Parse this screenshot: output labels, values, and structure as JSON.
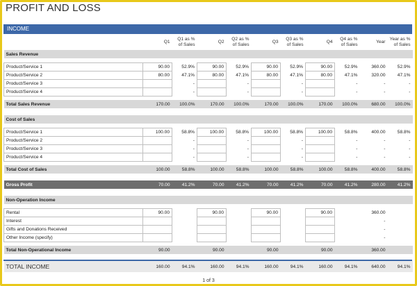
{
  "title": "PROFIT AND LOSS",
  "section": "INCOME",
  "headers": [
    "",
    "Q1",
    "Q1 as % of Sales",
    "Q2",
    "Q2 as % of Sales",
    "Q3",
    "Q3 as % of Sales",
    "Q4",
    "Q4 as % of Sales",
    "Year",
    "Year as % of Sales"
  ],
  "sales_revenue": {
    "label": "Sales Revenue",
    "rows": [
      {
        "label": "Product/Service 1",
        "cells": [
          "90.00",
          "52.9%",
          "90.00",
          "52.9%",
          "90.00",
          "52.9%",
          "90.00",
          "52.9%",
          "360.00",
          "52.9%"
        ]
      },
      {
        "label": "Product/Service 2",
        "cells": [
          "80.00",
          "47.1%",
          "80.00",
          "47.1%",
          "80.00",
          "47.1%",
          "80.00",
          "47.1%",
          "320.00",
          "47.1%"
        ]
      },
      {
        "label": "Product/Service 3",
        "cells": [
          "",
          "-",
          "",
          "-",
          "",
          "-",
          "",
          "-",
          "-",
          "-"
        ]
      },
      {
        "label": "Product/Service 4",
        "cells": [
          "",
          "-",
          "",
          "-",
          "",
          "-",
          "",
          "-",
          "-",
          "-"
        ]
      }
    ],
    "total": {
      "label": "Total Sales Revenue",
      "cells": [
        "170.00",
        "100.0%",
        "170.00",
        "100.0%",
        "170.00",
        "100.0%",
        "170.00",
        "100.0%",
        "680.00",
        "100.0%"
      ]
    }
  },
  "cost_of_sales": {
    "label": "Cost of Sales",
    "rows": [
      {
        "label": "Product/Service 1",
        "cells": [
          "100.00",
          "58.8%",
          "100.00",
          "58.8%",
          "100.00",
          "58.8%",
          "100.00",
          "58.8%",
          "400.00",
          "58.8%"
        ]
      },
      {
        "label": "Product/Service 2",
        "cells": [
          "",
          "-",
          "",
          "-",
          "",
          "-",
          "",
          "-",
          "-",
          "-"
        ]
      },
      {
        "label": "Product/Service 3",
        "cells": [
          "",
          "-",
          "",
          "-",
          "",
          "-",
          "",
          "-",
          "-",
          "-"
        ]
      },
      {
        "label": "Product/Service 4",
        "cells": [
          "",
          "-",
          "",
          "-",
          "",
          "-",
          "",
          "-",
          "-",
          "-"
        ]
      }
    ],
    "total": {
      "label": "Total Cost of Sales",
      "cells": [
        "100.00",
        "58.8%",
        "100.00",
        "58.8%",
        "100.00",
        "58.8%",
        "100.00",
        "58.8%",
        "400.00",
        "58.8%"
      ]
    }
  },
  "gross_profit": {
    "label": "Gross Profit",
    "cells": [
      "70.00",
      "41.2%",
      "70.00",
      "41.2%",
      "70.00",
      "41.2%",
      "70.00",
      "41.2%",
      "280.00",
      "41.2%"
    ]
  },
  "non_operation": {
    "label": "Non-Operation Income",
    "rows": [
      {
        "label": "Rental",
        "cells": [
          "90.00",
          "",
          "90.00",
          "",
          "90.00",
          "",
          "90.00",
          "",
          "360.00",
          ""
        ]
      },
      {
        "label": "Interest",
        "cells": [
          "",
          "",
          "",
          "",
          "",
          "",
          "",
          "",
          "-",
          ""
        ]
      },
      {
        "label": "Gifts and Donations Received",
        "cells": [
          "",
          "",
          "",
          "",
          "",
          "",
          "",
          "",
          "-",
          ""
        ]
      },
      {
        "label": "Other Income (specify)",
        "cells": [
          "",
          "",
          "",
          "",
          "",
          "",
          "",
          "",
          "-",
          ""
        ]
      }
    ],
    "total": {
      "label": "Total Non-Operational Income",
      "cells": [
        "90.00",
        "",
        "90.00",
        "",
        "90.00",
        "",
        "90.00",
        "",
        "360.00",
        ""
      ]
    }
  },
  "total_income": {
    "label": "TOTAL INCOME",
    "cells": [
      "160.00",
      "94.1%",
      "160.00",
      "94.1%",
      "160.00",
      "94.1%",
      "160.00",
      "94.1%",
      "640.00",
      "94.1%"
    ]
  },
  "footer": "1 of 3",
  "colors": {
    "accent": "#3d68a8",
    "frame": "#e8c81a",
    "gross_bg": "#6e6e6e",
    "band_bg": "#d8d8d8"
  }
}
